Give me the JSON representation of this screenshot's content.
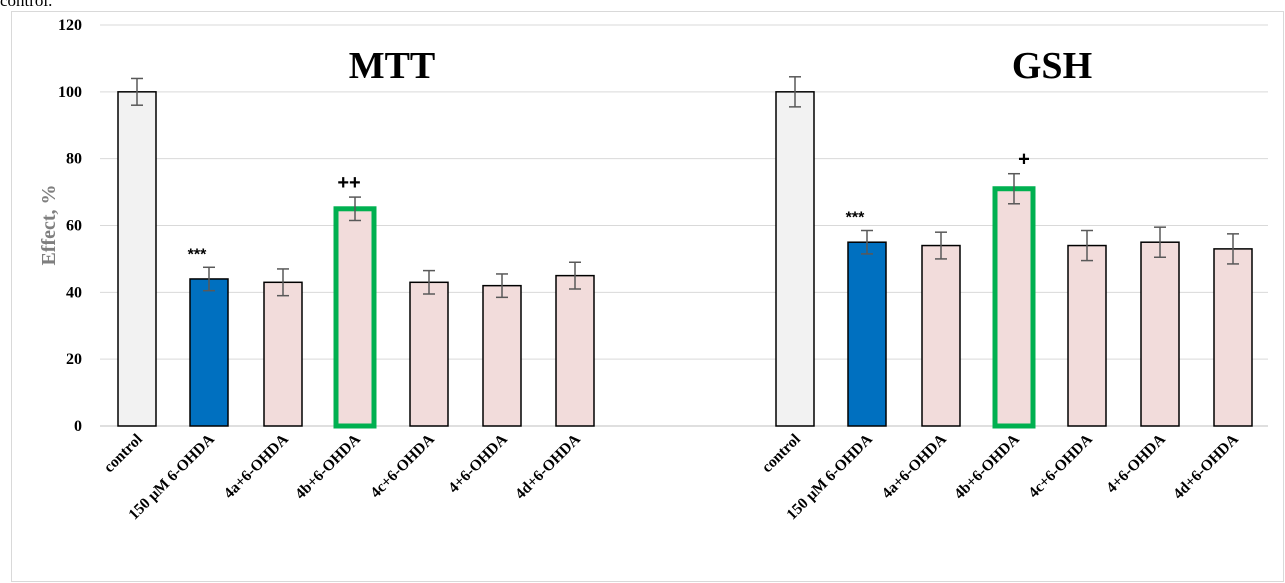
{
  "top_fragment": "control.",
  "colors": {
    "control": "#f2f2f2",
    "toxin": "#0070c0",
    "compound": "#f2dcdb",
    "highlight": "#00b050",
    "grid": "#d9d9d9",
    "errorbar": "#595959"
  },
  "chart_data": {
    "type": "bar",
    "ylabel": "Effect, %",
    "ylim": [
      0,
      120
    ],
    "yticks": [
      0,
      20,
      40,
      60,
      80,
      100,
      120
    ],
    "grid": true,
    "panels": [
      {
        "title": "MTT",
        "categories": [
          "control",
          "150 μM 6-OHDA",
          "4a+6-OHDA",
          "4b+6-OHDA",
          "4c+6-OHDA",
          "4+6-OHDA",
          "4d+6-OHDA"
        ],
        "values": [
          100,
          44,
          43,
          65,
          43,
          42,
          45
        ],
        "errors": [
          4,
          3.5,
          4,
          3.5,
          3.5,
          3.5,
          4
        ],
        "annotations": [
          "",
          "***",
          "",
          "++",
          "",
          "",
          ""
        ],
        "highlight": [
          false,
          false,
          false,
          true,
          false,
          false,
          false
        ]
      },
      {
        "title": "GSH",
        "categories": [
          "control",
          "150 μM 6-OHDA",
          "4a+6-OHDA",
          "4b+6-OHDA",
          "4c+6-OHDA",
          "4+6-OHDA",
          "4d+6-OHDA"
        ],
        "values": [
          100,
          55,
          54,
          71,
          54,
          55,
          53
        ],
        "errors": [
          4.5,
          3.5,
          4,
          4.5,
          4.5,
          4.5,
          4.5
        ],
        "annotations": [
          "",
          "***",
          "",
          "+",
          "",
          "",
          ""
        ],
        "highlight": [
          false,
          false,
          false,
          true,
          false,
          false,
          false
        ]
      }
    ]
  }
}
